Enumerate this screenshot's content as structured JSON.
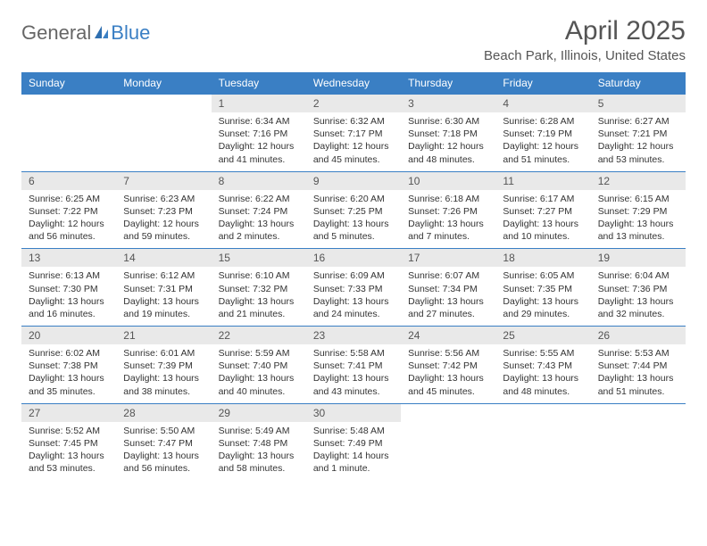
{
  "brand": {
    "word1": "General",
    "word2": "Blue"
  },
  "title": "April 2025",
  "location": "Beach Park, Illinois, United States",
  "colors": {
    "header_bg": "#3a7fc4",
    "header_text": "#ffffff",
    "daynum_bg": "#e9e9e9",
    "text": "#333333",
    "title_text": "#555555",
    "page_bg": "#ffffff"
  },
  "typography": {
    "title_fontsize_pt": 22,
    "location_fontsize_pt": 11,
    "dayheader_fontsize_pt": 9,
    "cell_fontsize_pt": 8
  },
  "day_headers": [
    "Sunday",
    "Monday",
    "Tuesday",
    "Wednesday",
    "Thursday",
    "Friday",
    "Saturday"
  ],
  "weeks": [
    [
      null,
      null,
      {
        "n": "1",
        "sr": "Sunrise: 6:34 AM",
        "ss": "Sunset: 7:16 PM",
        "dl": "Daylight: 12 hours and 41 minutes."
      },
      {
        "n": "2",
        "sr": "Sunrise: 6:32 AM",
        "ss": "Sunset: 7:17 PM",
        "dl": "Daylight: 12 hours and 45 minutes."
      },
      {
        "n": "3",
        "sr": "Sunrise: 6:30 AM",
        "ss": "Sunset: 7:18 PM",
        "dl": "Daylight: 12 hours and 48 minutes."
      },
      {
        "n": "4",
        "sr": "Sunrise: 6:28 AM",
        "ss": "Sunset: 7:19 PM",
        "dl": "Daylight: 12 hours and 51 minutes."
      },
      {
        "n": "5",
        "sr": "Sunrise: 6:27 AM",
        "ss": "Sunset: 7:21 PM",
        "dl": "Daylight: 12 hours and 53 minutes."
      }
    ],
    [
      {
        "n": "6",
        "sr": "Sunrise: 6:25 AM",
        "ss": "Sunset: 7:22 PM",
        "dl": "Daylight: 12 hours and 56 minutes."
      },
      {
        "n": "7",
        "sr": "Sunrise: 6:23 AM",
        "ss": "Sunset: 7:23 PM",
        "dl": "Daylight: 12 hours and 59 minutes."
      },
      {
        "n": "8",
        "sr": "Sunrise: 6:22 AM",
        "ss": "Sunset: 7:24 PM",
        "dl": "Daylight: 13 hours and 2 minutes."
      },
      {
        "n": "9",
        "sr": "Sunrise: 6:20 AM",
        "ss": "Sunset: 7:25 PM",
        "dl": "Daylight: 13 hours and 5 minutes."
      },
      {
        "n": "10",
        "sr": "Sunrise: 6:18 AM",
        "ss": "Sunset: 7:26 PM",
        "dl": "Daylight: 13 hours and 7 minutes."
      },
      {
        "n": "11",
        "sr": "Sunrise: 6:17 AM",
        "ss": "Sunset: 7:27 PM",
        "dl": "Daylight: 13 hours and 10 minutes."
      },
      {
        "n": "12",
        "sr": "Sunrise: 6:15 AM",
        "ss": "Sunset: 7:29 PM",
        "dl": "Daylight: 13 hours and 13 minutes."
      }
    ],
    [
      {
        "n": "13",
        "sr": "Sunrise: 6:13 AM",
        "ss": "Sunset: 7:30 PM",
        "dl": "Daylight: 13 hours and 16 minutes."
      },
      {
        "n": "14",
        "sr": "Sunrise: 6:12 AM",
        "ss": "Sunset: 7:31 PM",
        "dl": "Daylight: 13 hours and 19 minutes."
      },
      {
        "n": "15",
        "sr": "Sunrise: 6:10 AM",
        "ss": "Sunset: 7:32 PM",
        "dl": "Daylight: 13 hours and 21 minutes."
      },
      {
        "n": "16",
        "sr": "Sunrise: 6:09 AM",
        "ss": "Sunset: 7:33 PM",
        "dl": "Daylight: 13 hours and 24 minutes."
      },
      {
        "n": "17",
        "sr": "Sunrise: 6:07 AM",
        "ss": "Sunset: 7:34 PM",
        "dl": "Daylight: 13 hours and 27 minutes."
      },
      {
        "n": "18",
        "sr": "Sunrise: 6:05 AM",
        "ss": "Sunset: 7:35 PM",
        "dl": "Daylight: 13 hours and 29 minutes."
      },
      {
        "n": "19",
        "sr": "Sunrise: 6:04 AM",
        "ss": "Sunset: 7:36 PM",
        "dl": "Daylight: 13 hours and 32 minutes."
      }
    ],
    [
      {
        "n": "20",
        "sr": "Sunrise: 6:02 AM",
        "ss": "Sunset: 7:38 PM",
        "dl": "Daylight: 13 hours and 35 minutes."
      },
      {
        "n": "21",
        "sr": "Sunrise: 6:01 AM",
        "ss": "Sunset: 7:39 PM",
        "dl": "Daylight: 13 hours and 38 minutes."
      },
      {
        "n": "22",
        "sr": "Sunrise: 5:59 AM",
        "ss": "Sunset: 7:40 PM",
        "dl": "Daylight: 13 hours and 40 minutes."
      },
      {
        "n": "23",
        "sr": "Sunrise: 5:58 AM",
        "ss": "Sunset: 7:41 PM",
        "dl": "Daylight: 13 hours and 43 minutes."
      },
      {
        "n": "24",
        "sr": "Sunrise: 5:56 AM",
        "ss": "Sunset: 7:42 PM",
        "dl": "Daylight: 13 hours and 45 minutes."
      },
      {
        "n": "25",
        "sr": "Sunrise: 5:55 AM",
        "ss": "Sunset: 7:43 PM",
        "dl": "Daylight: 13 hours and 48 minutes."
      },
      {
        "n": "26",
        "sr": "Sunrise: 5:53 AM",
        "ss": "Sunset: 7:44 PM",
        "dl": "Daylight: 13 hours and 51 minutes."
      }
    ],
    [
      {
        "n": "27",
        "sr": "Sunrise: 5:52 AM",
        "ss": "Sunset: 7:45 PM",
        "dl": "Daylight: 13 hours and 53 minutes."
      },
      {
        "n": "28",
        "sr": "Sunrise: 5:50 AM",
        "ss": "Sunset: 7:47 PM",
        "dl": "Daylight: 13 hours and 56 minutes."
      },
      {
        "n": "29",
        "sr": "Sunrise: 5:49 AM",
        "ss": "Sunset: 7:48 PM",
        "dl": "Daylight: 13 hours and 58 minutes."
      },
      {
        "n": "30",
        "sr": "Sunrise: 5:48 AM",
        "ss": "Sunset: 7:49 PM",
        "dl": "Daylight: 14 hours and 1 minute."
      },
      null,
      null,
      null
    ]
  ]
}
